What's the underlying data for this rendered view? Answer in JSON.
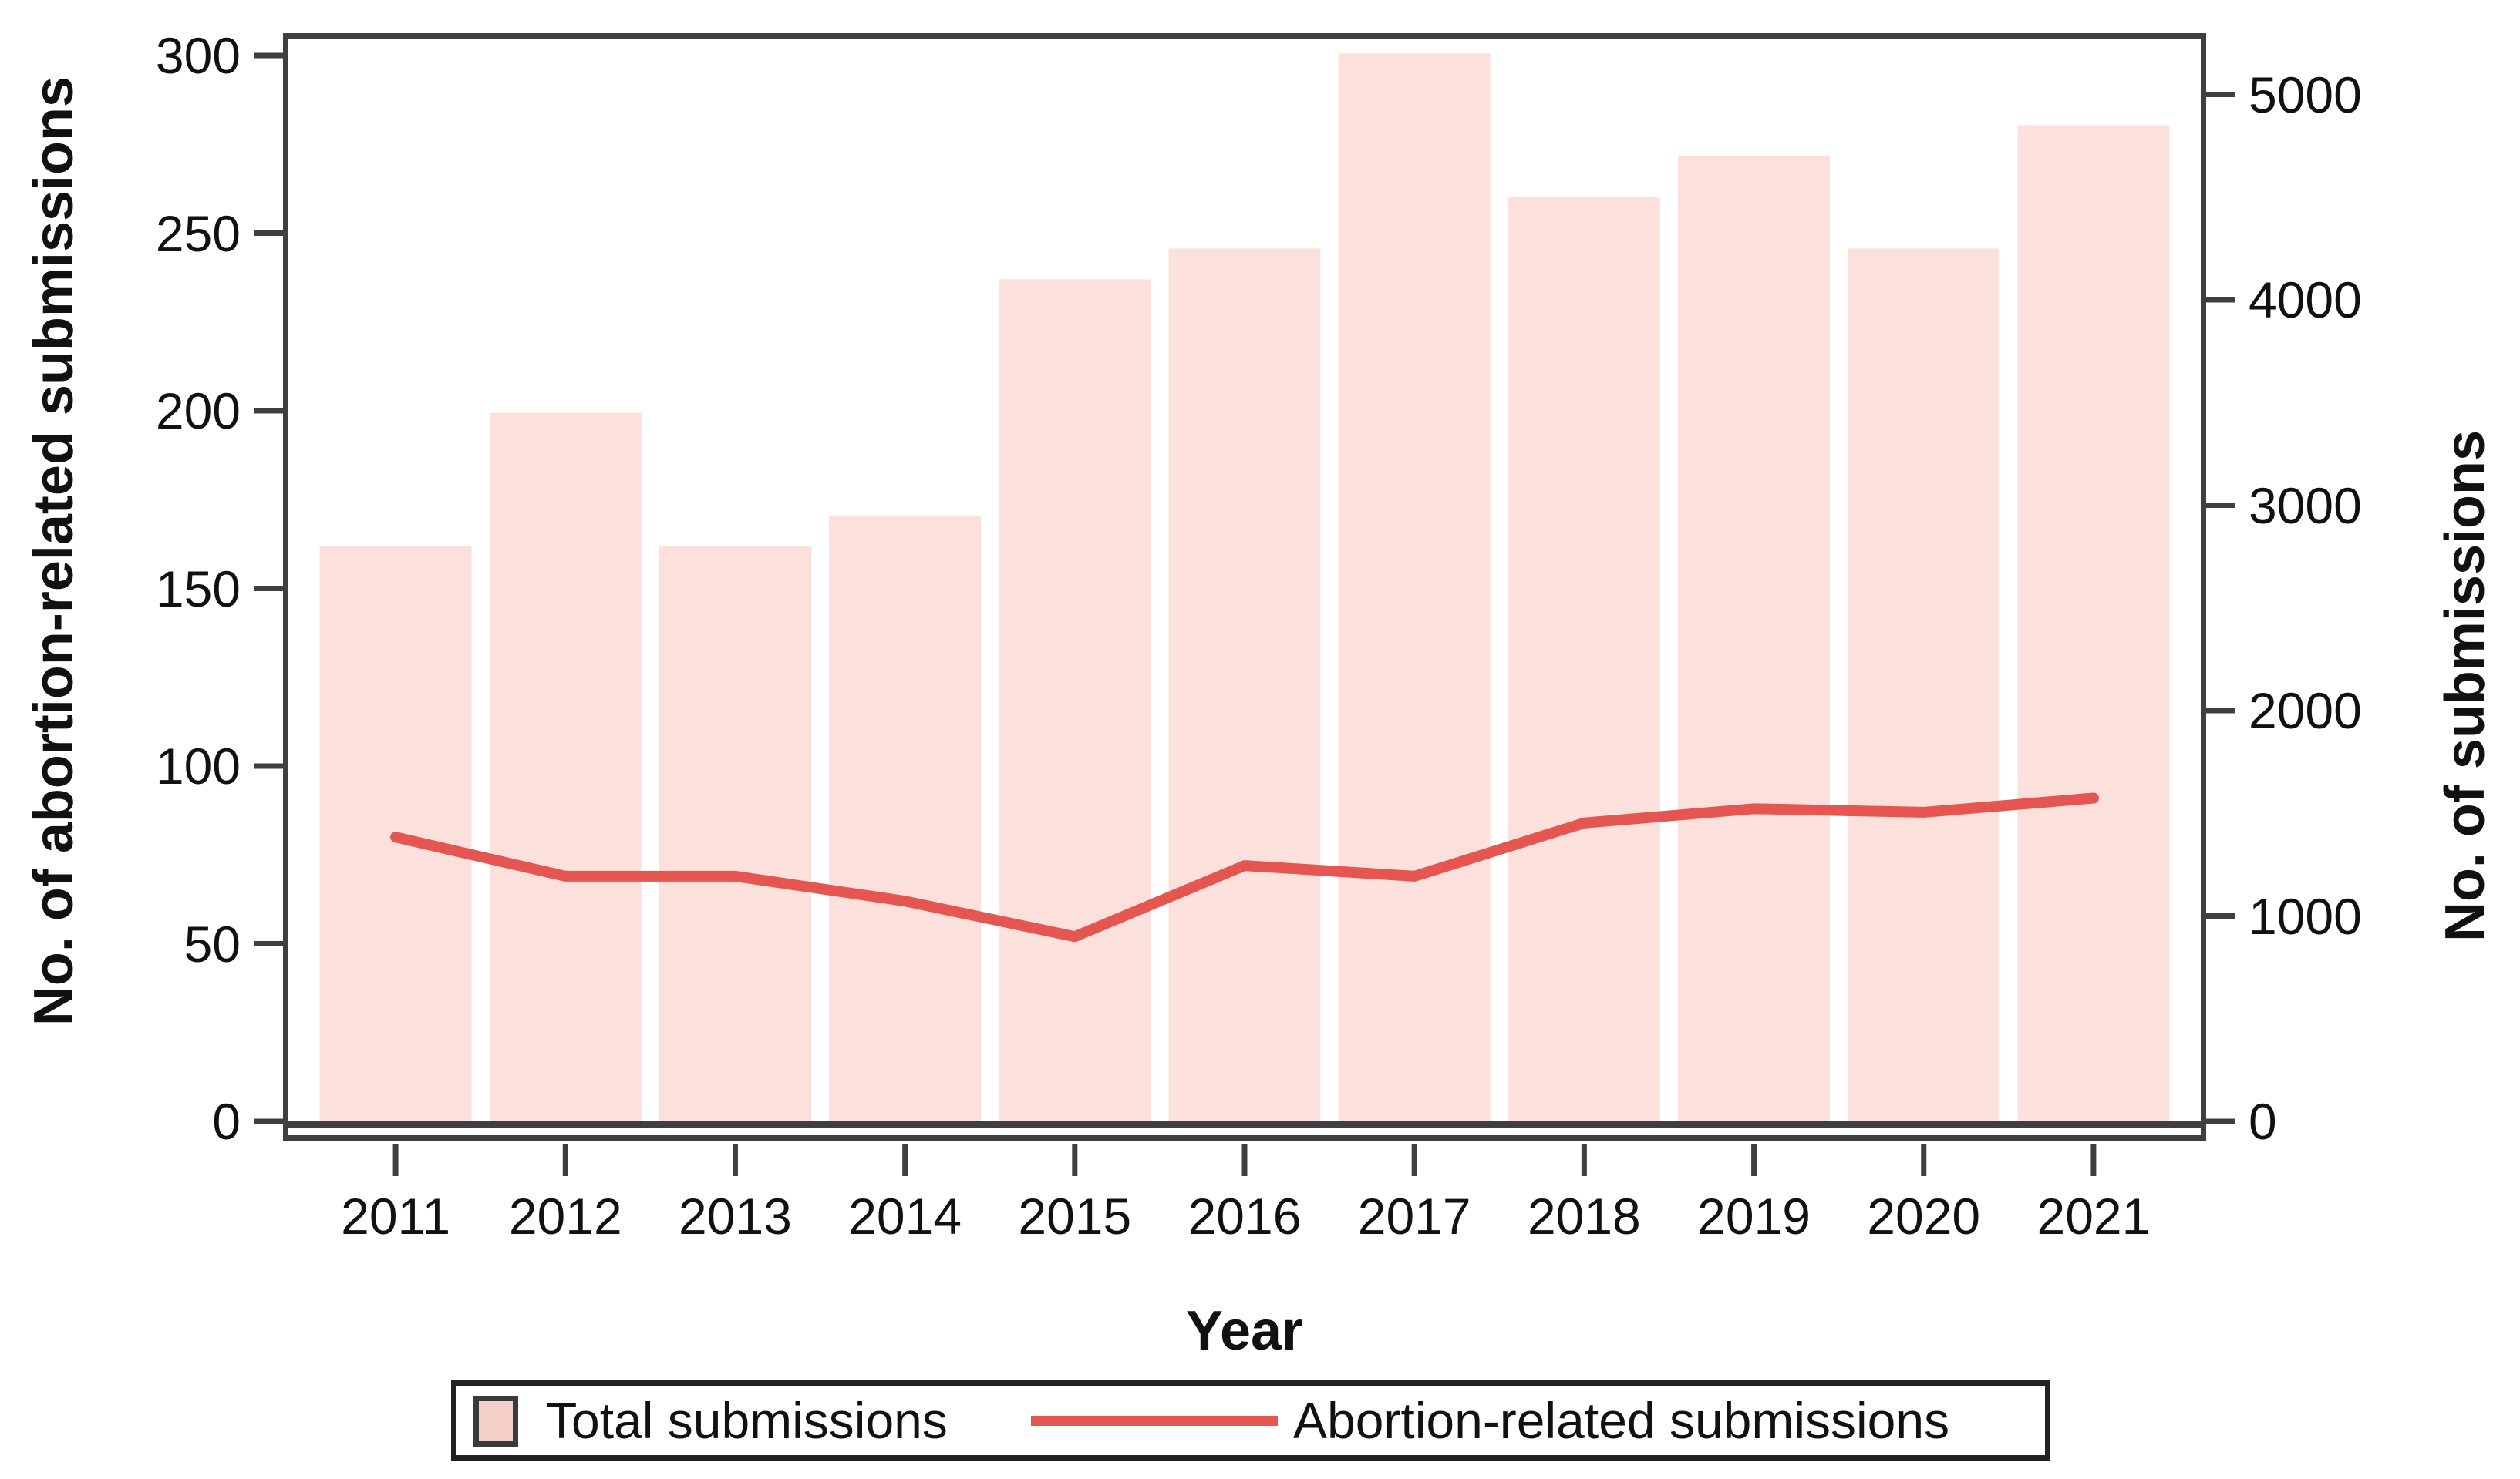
{
  "figure_title": "",
  "axes": {
    "left": {
      "title": "No. of abortion-related submissions",
      "ticks": [
        0,
        50,
        100,
        150,
        200,
        250,
        300
      ]
    },
    "right": {
      "title": "No. of submissions",
      "ticks": [
        0,
        1000,
        2000,
        3000,
        4000,
        5000
      ]
    },
    "x": {
      "title": "Year"
    }
  },
  "legend": {
    "bar_label": "Total submissions",
    "line_label": "Abortion-related submissions"
  },
  "colors": {
    "bar_fill": "#fbe0dc",
    "line_red": "#e4564f",
    "legend_swatch_fill": "#f5cfca",
    "axis_frame": "#3f3f3f",
    "text": "#111111"
  },
  "chart_data": {
    "type": "bar",
    "subtype": "combo-bar-line-dual-axis",
    "title": "",
    "xlabel": "Year",
    "ylabel_left": "No. of abortion-related submissions",
    "ylabel_right": "No. of submissions",
    "categories": [
      "2011",
      "2012",
      "2013",
      "2014",
      "2015",
      "2016",
      "2017",
      "2018",
      "2019",
      "2020",
      "2021"
    ],
    "series": [
      {
        "name": "Total submissions",
        "type": "bar",
        "axis": "right",
        "color": "#fbe0dc",
        "values": [
          2800,
          3450,
          2800,
          2950,
          4100,
          4250,
          5200,
          4500,
          4700,
          4250,
          4850
        ]
      },
      {
        "name": "Abortion-related submissions",
        "type": "line",
        "axis": "left",
        "color": "#e4564f",
        "values": [
          80,
          69,
          69,
          62,
          52,
          72,
          69,
          84,
          88,
          87,
          91
        ]
      }
    ],
    "ylim_left": [
      0,
      300
    ],
    "ylim_right": [
      0,
      5000
    ],
    "left_ticks": [
      0,
      50,
      100,
      150,
      200,
      250,
      300
    ],
    "right_ticks": [
      0,
      1000,
      2000,
      3000,
      4000,
      5000
    ],
    "grid": false,
    "legend_position": "bottom"
  }
}
